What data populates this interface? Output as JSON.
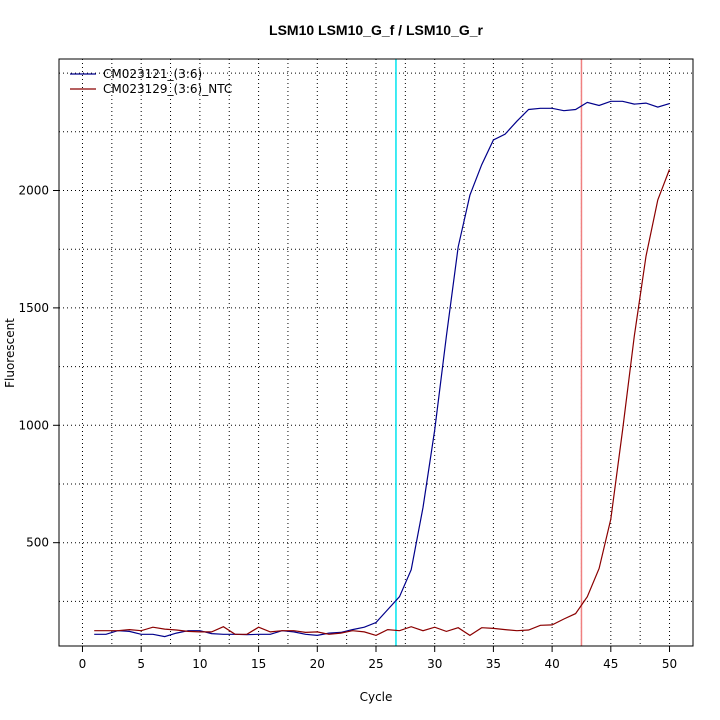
{
  "chart_data": {
    "type": "line",
    "title": "LSM10  LSM10_G_f / LSM10_G_r",
    "xlabel": "Cycle",
    "ylabel": "Fluorescent",
    "xlim": [
      -2,
      52
    ],
    "ylim": [
      60,
      2560
    ],
    "x_ticks": [
      0,
      5,
      10,
      15,
      20,
      25,
      30,
      35,
      40,
      45,
      50
    ],
    "y_ticks": [
      500,
      1000,
      1500,
      2000
    ],
    "grid": "dotted",
    "legend_position": "top-left",
    "series": [
      {
        "name": "CM023121_(3:6)",
        "color": "#00008b",
        "x": [
          1,
          2,
          3,
          4,
          5,
          6,
          7,
          8,
          9,
          10,
          11,
          12,
          13,
          14,
          15,
          16,
          17,
          18,
          19,
          20,
          21,
          22,
          23,
          24,
          25,
          26,
          27,
          28,
          29,
          30,
          31,
          32,
          33,
          34,
          35,
          36,
          37,
          38,
          39,
          40,
          41,
          42,
          43,
          44,
          45,
          46,
          47,
          48,
          49,
          50
        ],
        "y": [
          110,
          110,
          125,
          122,
          110,
          110,
          100,
          115,
          125,
          125,
          113,
          110,
          110,
          108,
          110,
          110,
          125,
          120,
          110,
          105,
          115,
          118,
          130,
          140,
          160,
          215,
          270,
          385,
          650,
          980,
          1380,
          1760,
          1980,
          2110,
          2215,
          2240,
          2295,
          2345,
          2350,
          2350,
          2340,
          2345,
          2375,
          2362,
          2380,
          2380,
          2368,
          2372,
          2355,
          2370
        ]
      },
      {
        "name": "CM023129_(3:6)_NTC",
        "color": "#8b0000",
        "x": [
          1,
          2,
          3,
          4,
          5,
          6,
          7,
          8,
          9,
          10,
          11,
          12,
          13,
          14,
          15,
          16,
          17,
          18,
          19,
          20,
          21,
          22,
          23,
          24,
          25,
          26,
          27,
          28,
          29,
          30,
          31,
          32,
          33,
          34,
          35,
          36,
          37,
          38,
          39,
          40,
          41,
          42,
          43,
          44,
          45,
          46,
          47,
          48,
          49,
          50
        ],
        "y": [
          125,
          125,
          125,
          130,
          125,
          140,
          132,
          128,
          122,
          120,
          120,
          142,
          110,
          110,
          140,
          120,
          125,
          125,
          118,
          120,
          110,
          115,
          125,
          120,
          105,
          130,
          125,
          142,
          125,
          140,
          122,
          138,
          105,
          138,
          135,
          130,
          125,
          128,
          148,
          150,
          175,
          198,
          270,
          390,
          600,
          980,
          1380,
          1720,
          1960,
          2090
        ]
      }
    ],
    "vlines": [
      {
        "x": 26.7,
        "color": "#00e5ee"
      },
      {
        "x": 42.5,
        "color": "#f08080"
      }
    ]
  }
}
